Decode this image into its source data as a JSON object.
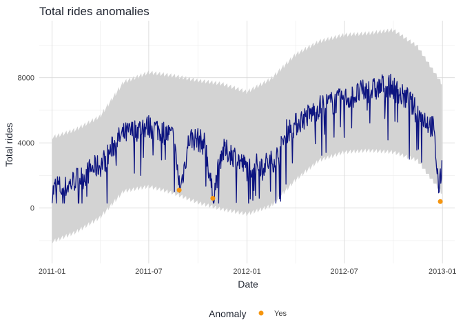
{
  "chart_data": {
    "type": "line",
    "title": "Total rides anomalies",
    "xlabel": "Date",
    "ylabel": "Total rides",
    "x_range": [
      "2010-12-08",
      "2013-01-24"
    ],
    "ylim": [
      -3400,
      11500
    ],
    "x_ticks": [
      {
        "date": "2011-01-01",
        "label": "2011-01"
      },
      {
        "date": "2011-07-01",
        "label": "2011-07"
      },
      {
        "date": "2012-01-01",
        "label": "2012-01"
      },
      {
        "date": "2012-07-01",
        "label": "2012-07"
      },
      {
        "date": "2013-01-01",
        "label": "2013-01"
      }
    ],
    "y_ticks": [
      {
        "value": 0,
        "label": "0"
      },
      {
        "value": 4000,
        "label": "4000"
      },
      {
        "value": 8000,
        "label": "8000"
      }
    ],
    "grid": true,
    "colors": {
      "line": "#0d1480",
      "band": "#d3d3d3",
      "anomaly": "#f5950f",
      "grid_major": "#d9d9d9",
      "grid_minor": "#ececec"
    },
    "series": [
      {
        "type": "line",
        "x": [
          "2011-01-01",
          "2011-01-10",
          "2011-01-20",
          "2011-02-01",
          "2011-02-15",
          "2011-03-01",
          "2011-03-15",
          "2011-04-01",
          "2011-04-15",
          "2011-05-01",
          "2011-05-15",
          "2011-06-01",
          "2011-06-15",
          "2011-07-01",
          "2011-07-15",
          "2011-08-01",
          "2011-08-15",
          "2011-08-29",
          "2011-09-15",
          "2011-10-01",
          "2011-10-15",
          "2011-10-29",
          "2011-11-15",
          "2011-12-01",
          "2011-12-15",
          "2012-01-01",
          "2012-01-15",
          "2012-02-01",
          "2012-02-15",
          "2012-03-01",
          "2012-03-15",
          "2012-04-01",
          "2012-04-15",
          "2012-05-01",
          "2012-05-15",
          "2012-06-01",
          "2012-06-15",
          "2012-07-01",
          "2012-07-15",
          "2012-08-01",
          "2012-08-15",
          "2012-09-01",
          "2012-09-15",
          "2012-10-01",
          "2012-10-15",
          "2012-10-29",
          "2012-11-15",
          "2012-12-01",
          "2012-12-15",
          "2012-12-26",
          "2012-12-31"
        ],
        "values": [
          900,
          1500,
          1100,
          1400,
          1800,
          1900,
          2400,
          2600,
          3200,
          4100,
          4500,
          4700,
          4900,
          5000,
          4900,
          4600,
          4400,
          1100,
          4300,
          4200,
          3900,
          600,
          3500,
          3400,
          3000,
          2400,
          2600,
          2700,
          2800,
          3300,
          4700,
          5100,
          5500,
          5800,
          6200,
          6400,
          6500,
          6700,
          6800,
          7100,
          7200,
          7300,
          7600,
          7400,
          6900,
          6700,
          5800,
          5400,
          4900,
          1000,
          2700
        ]
      },
      {
        "type": "band",
        "x": [
          "2011-01-01",
          "2011-02-15",
          "2011-04-01",
          "2011-05-15",
          "2011-07-01",
          "2011-08-15",
          "2011-10-01",
          "2011-11-15",
          "2012-01-01",
          "2012-02-15",
          "2012-04-01",
          "2012-05-15",
          "2012-07-01",
          "2012-08-15",
          "2012-10-01",
          "2012-11-15",
          "2012-12-31"
        ],
        "upper": [
          4200,
          4700,
          5500,
          7600,
          8200,
          8000,
          7700,
          7500,
          7000,
          7800,
          9300,
          10100,
          10500,
          10600,
          10800,
          9800,
          7500
        ],
        "lower": [
          -2200,
          -1600,
          -700,
          900,
          1200,
          800,
          200,
          -200,
          -500,
          0,
          1600,
          2800,
          3300,
          3400,
          3300,
          2800,
          800
        ]
      },
      {
        "type": "anomalies",
        "name": "Yes",
        "x": [
          "2011-08-27",
          "2011-10-29",
          "2012-12-28"
        ],
        "values": [
          1100,
          600,
          400
        ]
      }
    ],
    "legend": {
      "title": "Anomaly",
      "entries": [
        "Yes"
      ],
      "position": "bottom"
    }
  }
}
